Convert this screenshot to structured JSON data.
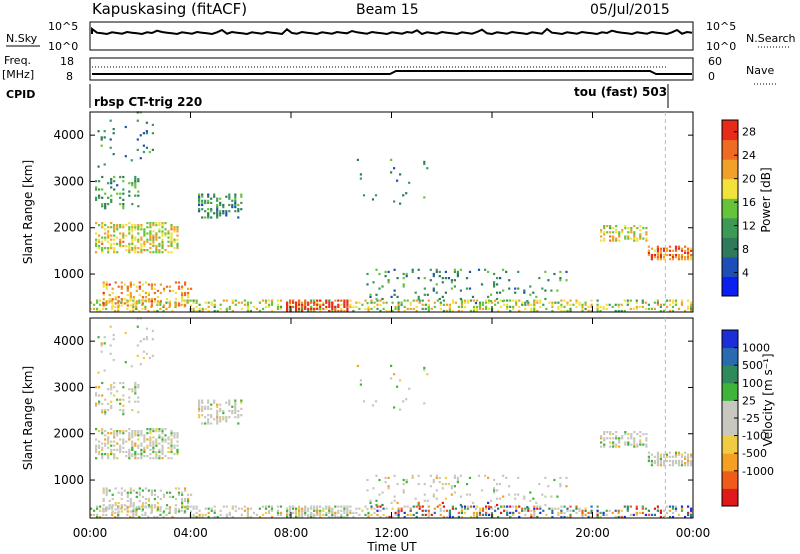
{
  "header": {
    "station": "Kapuskasing (fitACF)",
    "beam": "Beam 15",
    "date": "05/Jul/2015"
  },
  "strip_panels": {
    "nsky_label": "N.Sky",
    "nsky_ticks": [
      "10^5",
      "10^0"
    ],
    "nsearch_label": "N.Search",
    "nsearch_ticks": [
      "10^5",
      "10^0"
    ],
    "freq_label": "Freq.",
    "freq_unit": "[MHz]",
    "freq_ticks": [
      "18",
      "8"
    ],
    "nave_label": "Nave",
    "nave_ticks": [
      "60",
      "0"
    ],
    "cpid_label": "CPID",
    "cpid_left": "rbsp CT-trig 220",
    "cpid_right": "tou (fast) 503"
  },
  "colors": {
    "power": [
      "#0a20ee",
      "#1e4fb8",
      "#2f7a5a",
      "#3c9a55",
      "#66c43a",
      "#f2e23a",
      "#f1a02a",
      "#ef6a22",
      "#e82a1a"
    ],
    "velocity": [
      "#e01a1a",
      "#f05a1a",
      "#f5a023",
      "#f0cc40",
      "#c8c8c0",
      "#c8c8c0",
      "#3fb33a",
      "#2f8a5a",
      "#2a6bb0",
      "#1c2ed8"
    ]
  },
  "chart_data": [
    {
      "type": "heatmap",
      "ylabel": "Slant Range [km]",
      "x_ticks": [
        "00:00",
        "04:00",
        "08:00",
        "12:00",
        "16:00",
        "20:00",
        "00:00"
      ],
      "y_ticks": [
        1000,
        2000,
        3000,
        4000
      ],
      "ylim": [
        180,
        4500
      ],
      "xlim_hours": [
        0,
        24
      ],
      "colorbar_label": "Power [dB]",
      "colorbar_ticks": [
        4,
        8,
        12,
        16,
        20,
        24,
        28
      ],
      "colorbar_range": [
        0,
        30
      ]
    },
    {
      "type": "heatmap",
      "xlabel": "Time UT",
      "ylabel": "Slant Range [km]",
      "x_ticks": [
        "00:00",
        "04:00",
        "08:00",
        "12:00",
        "16:00",
        "20:00",
        "00:00"
      ],
      "y_ticks": [
        1000,
        2000,
        3000,
        4000
      ],
      "ylim": [
        180,
        4500
      ],
      "xlim_hours": [
        0,
        24
      ],
      "colorbar_label": "Velocity [m s⁻¹]",
      "colorbar_ticks": [
        "1000",
        "500",
        "100",
        "25",
        "-25",
        "-100",
        "-500",
        "-1000"
      ]
    }
  ]
}
